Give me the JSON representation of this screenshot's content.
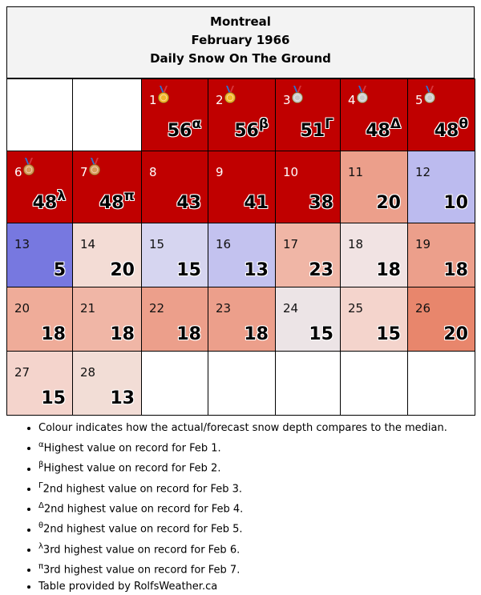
{
  "header": {
    "city": "Montreal",
    "month": "February 1966",
    "subtitle": "Daily Snow On The Ground"
  },
  "colors": {
    "record_red": "#c00000",
    "above_strong": "#e8866c",
    "above_mid": "#ec9f8b",
    "above_light": "#f0b6a6",
    "above_pale": "#f4d4cc",
    "near_median": "#ece4e6",
    "below_pale": "#d6d5f0",
    "below_light": "#bcbbef",
    "below_strong": "#7778e0"
  },
  "days": [
    {
      "day": "1",
      "value": "56",
      "mark": "α",
      "color": "#c00000",
      "medal": "gold"
    },
    {
      "day": "2",
      "value": "56",
      "mark": "β",
      "color": "#c00000",
      "medal": "gold"
    },
    {
      "day": "3",
      "value": "51",
      "mark": "Γ",
      "color": "#c00000",
      "medal": "silver"
    },
    {
      "day": "4",
      "value": "48",
      "mark": "Δ",
      "color": "#c00000",
      "medal": "silver"
    },
    {
      "day": "5",
      "value": "48",
      "mark": "θ",
      "color": "#c00000",
      "medal": "silver"
    },
    {
      "day": "6",
      "value": "48",
      "mark": "λ",
      "color": "#c00000",
      "medal": "bronze"
    },
    {
      "day": "7",
      "value": "48",
      "mark": "π",
      "color": "#c00000",
      "medal": "bronze"
    },
    {
      "day": "8",
      "value": "43",
      "mark": "",
      "color": "#c00000",
      "medal": ""
    },
    {
      "day": "9",
      "value": "41",
      "mark": "",
      "color": "#c00000",
      "medal": ""
    },
    {
      "day": "10",
      "value": "38",
      "mark": "",
      "color": "#c00000",
      "medal": ""
    },
    {
      "day": "11",
      "value": "20",
      "mark": "",
      "color": "#ec9f8b",
      "medal": ""
    },
    {
      "day": "12",
      "value": "10",
      "mark": "",
      "color": "#bcbbef",
      "medal": ""
    },
    {
      "day": "13",
      "value": "5",
      "mark": "",
      "color": "#7778e0",
      "medal": ""
    },
    {
      "day": "14",
      "value": "20",
      "mark": "",
      "color": "#f3dcd5",
      "medal": ""
    },
    {
      "day": "15",
      "value": "15",
      "mark": "",
      "color": "#d6d5f0",
      "medal": ""
    },
    {
      "day": "16",
      "value": "13",
      "mark": "",
      "color": "#c3c2ef",
      "medal": ""
    },
    {
      "day": "17",
      "value": "23",
      "mark": "",
      "color": "#f0b6a6",
      "medal": ""
    },
    {
      "day": "18",
      "value": "18",
      "mark": "",
      "color": "#f1e3e3",
      "medal": ""
    },
    {
      "day": "19",
      "value": "18",
      "mark": "",
      "color": "#ec9f8b",
      "medal": ""
    },
    {
      "day": "20",
      "value": "18",
      "mark": "",
      "color": "#efac99",
      "medal": ""
    },
    {
      "day": "21",
      "value": "18",
      "mark": "",
      "color": "#f0b6a6",
      "medal": ""
    },
    {
      "day": "22",
      "value": "18",
      "mark": "",
      "color": "#ec9f8b",
      "medal": ""
    },
    {
      "day": "23",
      "value": "18",
      "mark": "",
      "color": "#ec9f8b",
      "medal": ""
    },
    {
      "day": "24",
      "value": "15",
      "mark": "",
      "color": "#ece4e6",
      "medal": ""
    },
    {
      "day": "25",
      "value": "15",
      "mark": "",
      "color": "#f4d4cc",
      "medal": ""
    },
    {
      "day": "26",
      "value": "20",
      "mark": "",
      "color": "#e8866c",
      "medal": ""
    },
    {
      "day": "27",
      "value": "15",
      "mark": "",
      "color": "#f4d4cc",
      "medal": ""
    },
    {
      "day": "28",
      "value": "13",
      "mark": "",
      "color": "#f2ddd6",
      "medal": ""
    }
  ],
  "notes": [
    {
      "mark": "",
      "text": "Colour indicates how the actual/forecast snow depth compares to the median."
    },
    {
      "mark": "α",
      "text": "Highest value on record for Feb 1."
    },
    {
      "mark": "β",
      "text": "Highest value on record for Feb 2."
    },
    {
      "mark": "Γ",
      "text": "2nd highest value on record for Feb 3."
    },
    {
      "mark": "Δ",
      "text": "2nd highest value on record for Feb 4."
    },
    {
      "mark": "θ",
      "text": "2nd highest value on record for Feb 5."
    },
    {
      "mark": "λ",
      "text": "3rd highest value on record for Feb 6."
    },
    {
      "mark": "π",
      "text": "3rd highest value on record for Feb 7."
    },
    {
      "mark": "",
      "text": "Table provided by RolfsWeather.ca"
    }
  ]
}
